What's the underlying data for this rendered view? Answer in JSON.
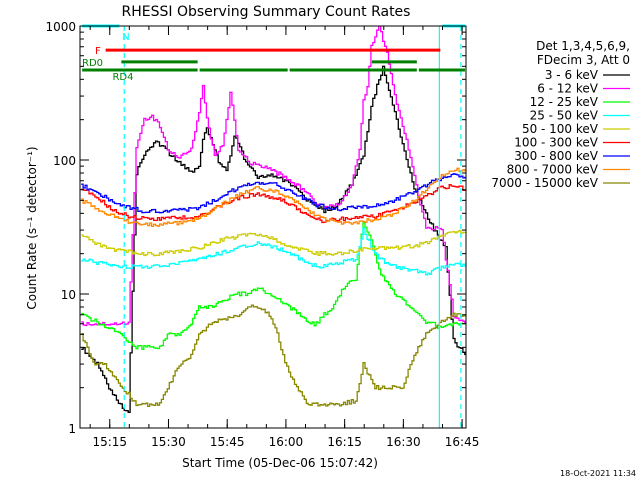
{
  "chart_data": {
    "type": "line",
    "title": "RHESSI Observing Summary Count Rates",
    "xlabel": "Start Time (05-Dec-06 15:07:42)",
    "ylabel": "Count Rate (s⁻¹ detector⁻¹)",
    "yscale": "log",
    "ylim": [
      1,
      1000
    ],
    "xlim_minutes": [
      -0.3,
      98.3
    ],
    "x_ticks": [
      "15:15",
      "15:30",
      "15:45",
      "16:00",
      "16:15",
      "16:30",
      "16:45"
    ],
    "y_ticks": [
      "1",
      "10",
      "100",
      "1000"
    ],
    "footer_date": "18-Oct-2021 11:34",
    "legend_header": [
      "Det 1,3,4,5,6,9,",
      "FDecim 3, Att 0"
    ],
    "series": [
      {
        "name": "3 - 6 keV",
        "color": "#000000",
        "points": [
          [
            0,
            4
          ],
          [
            4,
            3
          ],
          [
            7,
            2
          ],
          [
            10,
            1.5
          ],
          [
            12,
            1.3
          ],
          [
            14,
            80
          ],
          [
            16,
            110
          ],
          [
            19,
            140
          ],
          [
            22,
            115
          ],
          [
            25,
            95
          ],
          [
            28,
            80
          ],
          [
            30,
            88
          ],
          [
            31,
            140
          ],
          [
            32,
            170
          ],
          [
            33,
            150
          ],
          [
            35,
            95
          ],
          [
            37,
            85
          ],
          [
            38,
            105
          ],
          [
            39,
            150
          ],
          [
            40,
            135
          ],
          [
            42,
            95
          ],
          [
            45,
            75
          ],
          [
            48,
            78
          ],
          [
            52,
            70
          ],
          [
            55,
            62
          ],
          [
            57,
            52
          ],
          [
            60,
            45
          ],
          [
            62,
            42
          ],
          [
            65,
            45
          ],
          [
            68,
            60
          ],
          [
            70,
            75
          ],
          [
            72,
            110
          ],
          [
            74,
            250
          ],
          [
            76,
            400
          ],
          [
            77,
            490
          ],
          [
            79,
            300
          ],
          [
            82,
            130
          ],
          [
            85,
            60
          ],
          [
            88,
            40
          ],
          [
            90,
            30
          ],
          [
            92,
            25
          ],
          [
            93,
            22
          ],
          [
            95,
            4.5
          ],
          [
            98,
            3.5
          ]
        ]
      },
      {
        "name": "6 - 12 keV",
        "color": "#ff00ff",
        "points": [
          [
            0,
            6
          ],
          [
            10,
            6
          ],
          [
            12,
            6
          ],
          [
            14,
            120
          ],
          [
            16,
            200
          ],
          [
            18,
            210
          ],
          [
            20,
            180
          ],
          [
            22,
            120
          ],
          [
            25,
            105
          ],
          [
            28,
            120
          ],
          [
            30,
            220
          ],
          [
            31,
            370
          ],
          [
            32,
            200
          ],
          [
            34,
            110
          ],
          [
            36,
            130
          ],
          [
            37,
            200
          ],
          [
            38,
            320
          ],
          [
            39,
            200
          ],
          [
            40,
            120
          ],
          [
            43,
            95
          ],
          [
            48,
            85
          ],
          [
            52,
            75
          ],
          [
            56,
            62
          ],
          [
            60,
            48
          ],
          [
            63,
            45
          ],
          [
            66,
            48
          ],
          [
            69,
            65
          ],
          [
            71,
            120
          ],
          [
            72,
            280
          ],
          [
            73,
            350
          ],
          [
            74,
            700
          ],
          [
            75,
            850
          ],
          [
            76,
            1000
          ],
          [
            78,
            620
          ],
          [
            80,
            300
          ],
          [
            83,
            140
          ],
          [
            85,
            75
          ],
          [
            87,
            40
          ],
          [
            88,
            32
          ],
          [
            92,
            30
          ],
          [
            95,
            7
          ],
          [
            98,
            6
          ]
        ]
      },
      {
        "name": "12 - 25 keV",
        "color": "#00ff00",
        "points": [
          [
            0,
            7
          ],
          [
            5,
            6
          ],
          [
            10,
            5
          ],
          [
            14,
            4
          ],
          [
            18,
            4
          ],
          [
            20,
            4
          ],
          [
            22,
            5
          ],
          [
            25,
            5
          ],
          [
            28,
            6
          ],
          [
            30,
            8
          ],
          [
            33,
            8
          ],
          [
            36,
            9
          ],
          [
            40,
            10
          ],
          [
            42,
            10
          ],
          [
            45,
            11
          ],
          [
            50,
            9.5
          ],
          [
            53,
            8
          ],
          [
            56,
            7
          ],
          [
            58,
            6
          ],
          [
            60,
            6
          ],
          [
            62,
            7
          ],
          [
            64,
            8
          ],
          [
            66,
            10
          ],
          [
            68,
            12
          ],
          [
            70,
            13
          ],
          [
            72,
            35
          ],
          [
            74,
            25
          ],
          [
            76,
            15
          ],
          [
            78,
            12
          ],
          [
            80,
            10
          ],
          [
            82,
            9
          ],
          [
            84,
            8
          ],
          [
            86,
            7
          ],
          [
            88,
            6
          ],
          [
            90,
            6
          ],
          [
            92,
            5.5
          ],
          [
            95,
            6
          ],
          [
            98,
            6
          ]
        ]
      },
      {
        "name": "25 - 50 keV",
        "color": "#00ffff",
        "points": [
          [
            0,
            18
          ],
          [
            5,
            17
          ],
          [
            10,
            16
          ],
          [
            15,
            16
          ],
          [
            20,
            16
          ],
          [
            25,
            17
          ],
          [
            30,
            18
          ],
          [
            35,
            20
          ],
          [
            40,
            22
          ],
          [
            45,
            24
          ],
          [
            50,
            22
          ],
          [
            55,
            19
          ],
          [
            58,
            17
          ],
          [
            60,
            16
          ],
          [
            62,
            16
          ],
          [
            65,
            17
          ],
          [
            70,
            18
          ],
          [
            72,
            30
          ],
          [
            75,
            20
          ],
          [
            78,
            17
          ],
          [
            80,
            16
          ],
          [
            85,
            15
          ],
          [
            88,
            14
          ],
          [
            90,
            15
          ],
          [
            93,
            16
          ],
          [
            95,
            17
          ],
          [
            98,
            16
          ]
        ]
      },
      {
        "name": "50 - 100 keV",
        "color": "#cccc00",
        "points": [
          [
            0,
            27
          ],
          [
            5,
            23
          ],
          [
            10,
            21
          ],
          [
            15,
            20
          ],
          [
            20,
            20
          ],
          [
            25,
            21
          ],
          [
            30,
            22
          ],
          [
            35,
            25
          ],
          [
            40,
            27
          ],
          [
            45,
            28
          ],
          [
            50,
            25
          ],
          [
            55,
            22
          ],
          [
            60,
            20
          ],
          [
            65,
            20
          ],
          [
            70,
            21
          ],
          [
            75,
            22
          ],
          [
            80,
            22
          ],
          [
            85,
            23
          ],
          [
            88,
            24
          ],
          [
            90,
            26
          ],
          [
            93,
            28
          ],
          [
            95,
            29
          ],
          [
            98,
            29
          ]
        ]
      },
      {
        "name": "100 - 300 keV",
        "color": "#ff0000",
        "points": [
          [
            0,
            62
          ],
          [
            5,
            50
          ],
          [
            8,
            42
          ],
          [
            10,
            40
          ],
          [
            12,
            38
          ],
          [
            15,
            37
          ],
          [
            20,
            36
          ],
          [
            25,
            37
          ],
          [
            30,
            38
          ],
          [
            35,
            45
          ],
          [
            40,
            52
          ],
          [
            45,
            56
          ],
          [
            50,
            52
          ],
          [
            55,
            44
          ],
          [
            58,
            38
          ],
          [
            60,
            36
          ],
          [
            62,
            35
          ],
          [
            65,
            36
          ],
          [
            70,
            37
          ],
          [
            75,
            38
          ],
          [
            80,
            42
          ],
          [
            85,
            48
          ],
          [
            88,
            53
          ],
          [
            90,
            58
          ],
          [
            92,
            62
          ],
          [
            95,
            65
          ],
          [
            98,
            60
          ]
        ]
      },
      {
        "name": "300 - 800 keV",
        "color": "#0000ff",
        "points": [
          [
            0,
            65
          ],
          [
            5,
            55
          ],
          [
            10,
            46
          ],
          [
            15,
            42
          ],
          [
            20,
            41
          ],
          [
            25,
            42
          ],
          [
            30,
            44
          ],
          [
            35,
            52
          ],
          [
            40,
            62
          ],
          [
            45,
            68
          ],
          [
            50,
            65
          ],
          [
            55,
            55
          ],
          [
            60,
            46
          ],
          [
            65,
            43
          ],
          [
            70,
            44
          ],
          [
            75,
            46
          ],
          [
            80,
            50
          ],
          [
            85,
            58
          ],
          [
            88,
            65
          ],
          [
            90,
            70
          ],
          [
            93,
            75
          ],
          [
            95,
            77
          ],
          [
            98,
            75
          ]
        ]
      },
      {
        "name": "800 - 7000 keV",
        "color": "#ff8800",
        "points": [
          [
            0,
            50
          ],
          [
            5,
            42
          ],
          [
            10,
            36
          ],
          [
            15,
            33
          ],
          [
            20,
            33
          ],
          [
            25,
            34
          ],
          [
            30,
            37
          ],
          [
            35,
            45
          ],
          [
            40,
            55
          ],
          [
            45,
            62
          ],
          [
            50,
            58
          ],
          [
            55,
            48
          ],
          [
            60,
            38
          ],
          [
            65,
            34
          ],
          [
            70,
            34
          ],
          [
            75,
            36
          ],
          [
            80,
            40
          ],
          [
            85,
            50
          ],
          [
            88,
            60
          ],
          [
            90,
            70
          ],
          [
            93,
            80
          ],
          [
            95,
            85
          ],
          [
            98,
            82
          ]
        ]
      },
      {
        "name": "7000 - 15000 keV",
        "color": "#888800",
        "points": [
          [
            0,
            5
          ],
          [
            3,
            3
          ],
          [
            6,
            3
          ],
          [
            8,
            2.5
          ],
          [
            10,
            2
          ],
          [
            12,
            1.8
          ],
          [
            14,
            1.5
          ],
          [
            18,
            1.5
          ],
          [
            20,
            1.5
          ],
          [
            22,
            2
          ],
          [
            25,
            3
          ],
          [
            28,
            3.5
          ],
          [
            30,
            5
          ],
          [
            33,
            6
          ],
          [
            36,
            6.5
          ],
          [
            40,
            7
          ],
          [
            42,
            8
          ],
          [
            45,
            8
          ],
          [
            48,
            7
          ],
          [
            50,
            5
          ],
          [
            52,
            3
          ],
          [
            55,
            2
          ],
          [
            58,
            1.5
          ],
          [
            62,
            1.5
          ],
          [
            66,
            1.5
          ],
          [
            70,
            1.6
          ],
          [
            72,
            3
          ],
          [
            75,
            2
          ],
          [
            78,
            2
          ],
          [
            80,
            2
          ],
          [
            82,
            2
          ],
          [
            84,
            3
          ],
          [
            86,
            4
          ],
          [
            88,
            5
          ],
          [
            90,
            5.5
          ],
          [
            93,
            6.5
          ],
          [
            95,
            7
          ],
          [
            98,
            7
          ]
        ]
      }
    ],
    "state_bars": [
      {
        "label": "N",
        "color": "#00ffff",
        "level": 1000,
        "intervals": [
          [
            0,
            10
          ],
          [
            92,
            98.3
          ]
        ]
      },
      {
        "label": "F",
        "color": "#ff0000",
        "level": 660,
        "intervals": [
          [
            6,
            92
          ]
        ]
      },
      {
        "label": "RD0",
        "color": "#008000",
        "level": 540,
        "intervals": [
          [
            10,
            30
          ],
          [
            74,
            86
          ]
        ]
      },
      {
        "label": "RD4",
        "color": "#008000",
        "level": 470,
        "intervals": [
          [
            0,
            30
          ],
          [
            30,
            53
          ],
          [
            53,
            86
          ],
          [
            86,
            98.3
          ]
        ]
      }
    ],
    "vertical_markers": [
      {
        "color": "#00ffff",
        "style": "dashed",
        "x": 11
      },
      {
        "color": "#00ffff",
        "style": "solid",
        "x": 91.5
      },
      {
        "color": "#00ffff",
        "style": "dashed",
        "x": 97
      }
    ]
  }
}
